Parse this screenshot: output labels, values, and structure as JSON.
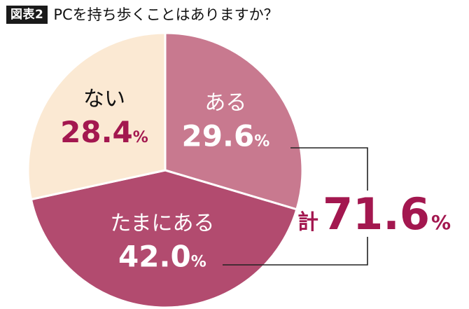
{
  "header": {
    "badge": "図表2",
    "title": "PCを持ち歩くことはありますか？"
  },
  "chart_data": {
    "type": "pie",
    "title": "PCを持ち歩くことはありますか？",
    "unit": "%",
    "slices": [
      {
        "label": "ある",
        "value": 29.6,
        "value_text": "29.6",
        "color": "#c8798f"
      },
      {
        "label": "たまにある",
        "value": 42.0,
        "value_text": "42.0",
        "color": "#b24b6f"
      },
      {
        "label": "ない",
        "value": 28.4,
        "value_text": "28.4",
        "color": "#fbe9d3"
      }
    ],
    "total_annotation": {
      "prefix": "計",
      "value_text": "71.6",
      "unit": "%",
      "color": "#a3174f"
    }
  }
}
